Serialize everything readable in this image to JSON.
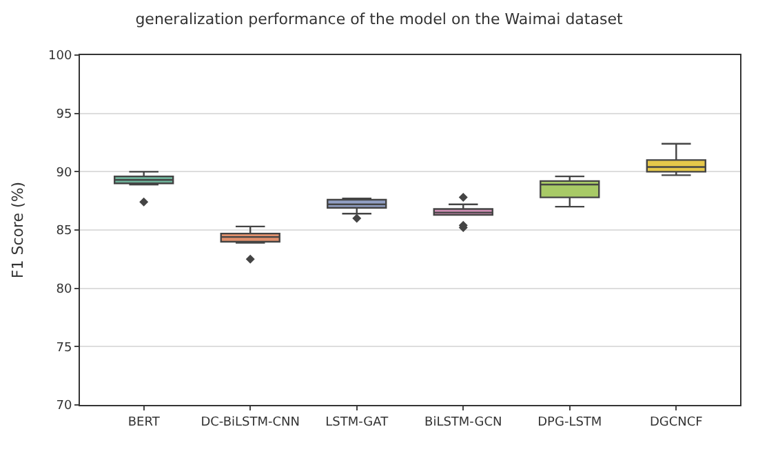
{
  "chart_data": {
    "type": "box",
    "title": "generalization performance of the model on the Waimai dataset",
    "ylabel": "F1 Score (%)",
    "categories": [
      "BERT",
      "DC-BiLSTM-CNN",
      "LSTM-GAT",
      "BiLSTM-GCN",
      "DPG-LSTM",
      "DGCNCF"
    ],
    "colors": [
      "#6fb59c",
      "#e2906c",
      "#919fc4",
      "#d28fb6",
      "#a8ca66",
      "#e6c84a"
    ],
    "boxes": [
      {
        "low": 88.9,
        "q1": 89.0,
        "median": 89.3,
        "q3": 89.6,
        "high": 90.0,
        "outliers": [
          87.4
        ]
      },
      {
        "low": 83.9,
        "q1": 84.0,
        "median": 84.4,
        "q3": 84.7,
        "high": 85.3,
        "outliers": [
          82.5
        ]
      },
      {
        "low": 86.4,
        "q1": 86.9,
        "median": 87.2,
        "q3": 87.6,
        "high": 87.7,
        "outliers": [
          86.0
        ]
      },
      {
        "low": 86.3,
        "q1": 86.3,
        "median": 86.5,
        "q3": 86.8,
        "high": 87.2,
        "outliers": [
          87.8,
          85.4,
          85.2
        ]
      },
      {
        "low": 87.0,
        "q1": 87.8,
        "median": 88.9,
        "q3": 89.2,
        "high": 89.6
      },
      {
        "low": 89.7,
        "q1": 90.0,
        "median": 90.4,
        "q3": 91.0,
        "high": 92.4
      }
    ],
    "ylim": [
      70,
      100
    ],
    "yticks": [
      70,
      75,
      80,
      85,
      90,
      95,
      100
    ],
    "grid": "y",
    "marker": "diamond"
  }
}
